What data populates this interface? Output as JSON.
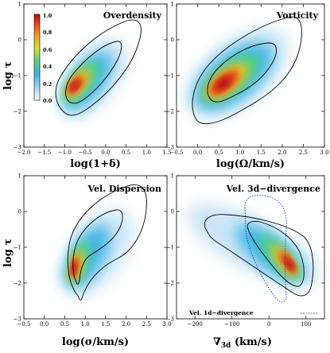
{
  "chart_data": [
    {
      "type": "heatmap",
      "title": "Overdensity",
      "xlabel": "log(1+δ)",
      "ylabel": "log τ",
      "xlim": [
        -2.0,
        1.5
      ],
      "ylim": [
        -3,
        1
      ],
      "xticks": [
        "−2.0",
        "−1.5",
        "−1.0",
        "−0.5",
        "0.0",
        "0.5",
        "1.0",
        "1.5"
      ],
      "yticks": [
        "−3",
        "−2",
        "−1",
        "0",
        "1"
      ],
      "density_peak": {
        "x": -0.35,
        "y": -0.95,
        "value": 1.0
      },
      "ridge_points": [
        [
          -1.05,
          -2.0
        ],
        [
          -0.65,
          -1.45
        ],
        [
          -0.3,
          -1.0
        ],
        [
          0.15,
          -0.55
        ],
        [
          0.65,
          0.1
        ],
        [
          1.05,
          0.55
        ]
      ],
      "contours": [
        "inner",
        "outer"
      ],
      "colorbar": {
        "ticks": [
          "1.0",
          "0.8",
          "0.6",
          "0.4",
          "0.2",
          "0.0"
        ],
        "range": [
          0.0,
          1.0
        ]
      }
    },
    {
      "type": "heatmap",
      "title": "Vorticity",
      "xlabel": "log(Ω/km/s)",
      "ylabel": "",
      "xlim": [
        -0.5,
        3.0
      ],
      "ylim": [
        -3,
        1
      ],
      "xticks": [
        "−0.5",
        "0.0",
        "0.5",
        "1.0",
        "1.5",
        "2.0",
        "2.5",
        "3.0"
      ],
      "yticks": [
        "−3",
        "−2",
        "−1",
        "0",
        "1"
      ],
      "density_peak": {
        "x": 1.15,
        "y": -0.95,
        "value": 1.0
      },
      "ridge_points": [
        [
          0.5,
          -1.7
        ],
        [
          1.0,
          -1.1
        ],
        [
          1.5,
          -0.65
        ],
        [
          2.0,
          -0.2
        ],
        [
          2.4,
          0.35
        ]
      ],
      "contours": [
        "inner",
        "outer"
      ]
    },
    {
      "type": "heatmap",
      "title": "Vel. Dispersion",
      "xlabel": "log(σ/km/s)",
      "ylabel": "log τ",
      "xlim": [
        -0.5,
        3.0
      ],
      "ylim": [
        -3,
        1
      ],
      "xticks": [
        "−0.5",
        "0.0",
        "0.5",
        "1.0",
        "1.5",
        "2.0",
        "2.5",
        "3.0"
      ],
      "yticks": [
        "−3",
        "−2",
        "−1",
        "0",
        "1"
      ],
      "density_peak": {
        "x": 0.75,
        "y": -1.35,
        "value": 1.0
      },
      "ridge_points": [
        [
          0.8,
          -2.0
        ],
        [
          0.8,
          -1.4
        ],
        [
          1.0,
          -0.8
        ],
        [
          1.4,
          -0.4
        ],
        [
          1.9,
          0.05
        ]
      ],
      "contours": [
        "inner",
        "outer"
      ]
    },
    {
      "type": "heatmap",
      "title": "Vel. 3d−divergence",
      "xlabel": "∇3d (km/s)",
      "ylabel": "",
      "xlim": [
        -250,
        150
      ],
      "ylim": [
        -3,
        1
      ],
      "xticks": [
        "−200",
        "−100",
        "0",
        "100"
      ],
      "yticks": [
        "−3",
        "−2",
        "−1",
        "0",
        "1"
      ],
      "density_peak": {
        "x": 45,
        "y": -1.2,
        "value": 1.0
      },
      "ridge_points": [
        [
          -190,
          -0.1
        ],
        [
          -100,
          -0.5
        ],
        [
          -10,
          -0.95
        ],
        [
          45,
          -1.25
        ],
        [
          80,
          -1.7
        ]
      ],
      "contours": [
        "inner",
        "outer"
      ],
      "extra_contour": {
        "name": "Vel. 1d−divergence",
        "style": "dotted",
        "color": "#3a4fc0"
      }
    }
  ]
}
